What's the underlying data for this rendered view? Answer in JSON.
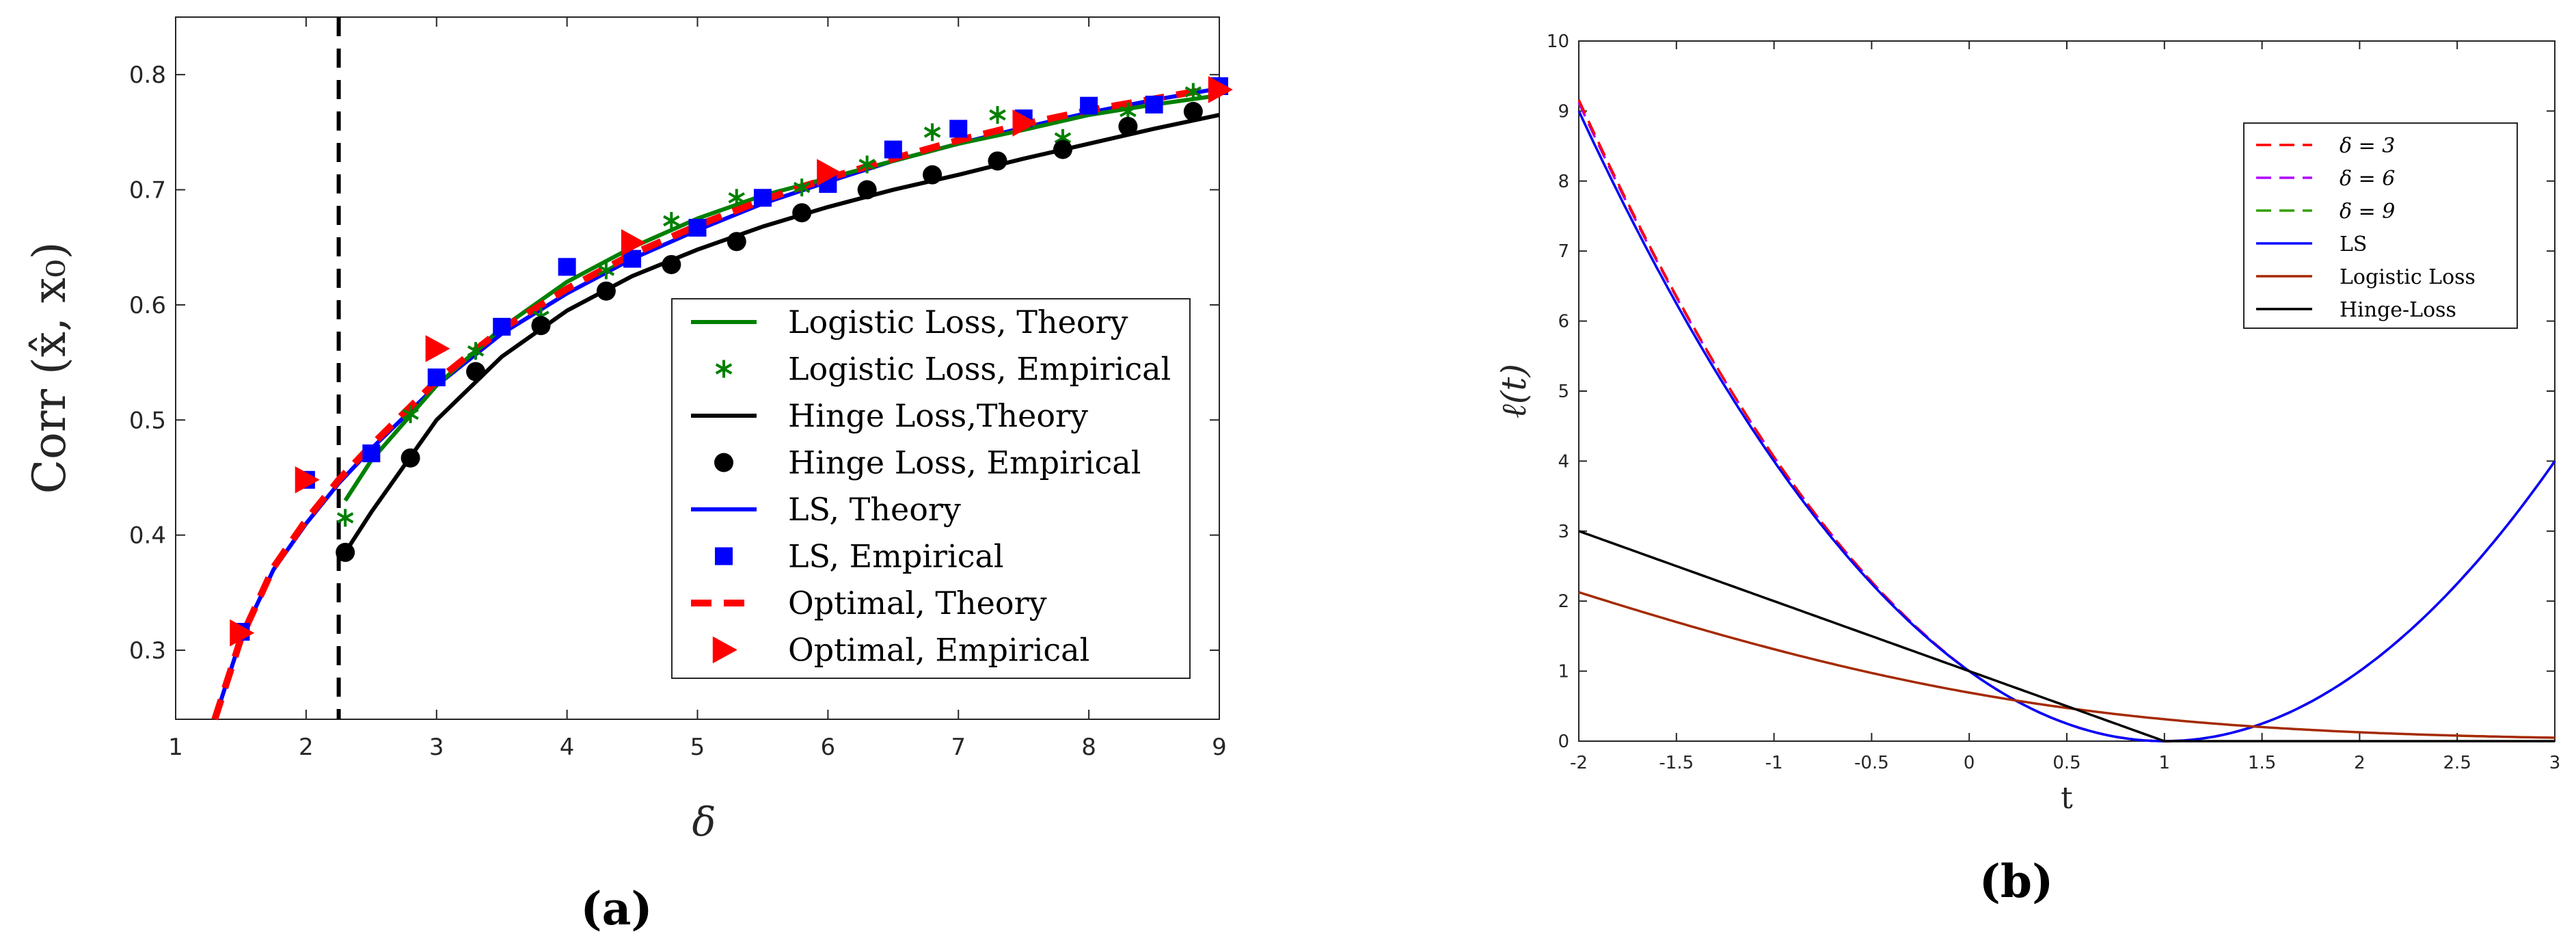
{
  "chart_data": [
    {
      "id": "a",
      "type": "line",
      "caption": "(a)",
      "xlabel": "δ",
      "ylabel": "Corr (x̂, x₀)",
      "xlim": [
        1,
        9
      ],
      "ylim": [
        0.24,
        0.85
      ],
      "xticks": [
        "1",
        "2",
        "3",
        "4",
        "5",
        "6",
        "7",
        "8",
        "9"
      ],
      "yticks": [
        "0.3",
        "0.4",
        "0.5",
        "0.6",
        "0.7",
        "0.8"
      ],
      "vline": 2.25,
      "legend_position": "bottom-right",
      "series": [
        {
          "name": "Logistic Loss, Theory",
          "kind": "line",
          "color": "#008000",
          "x": [
            2.3,
            2.5,
            3,
            3.5,
            4,
            4.5,
            5,
            5.5,
            6,
            6.5,
            7,
            7.5,
            8,
            8.5,
            9
          ],
          "y": [
            0.43,
            0.465,
            0.53,
            0.58,
            0.62,
            0.65,
            0.675,
            0.695,
            0.71,
            0.725,
            0.74,
            0.752,
            0.765,
            0.774,
            0.782
          ]
        },
        {
          "name": "Logistic Loss, Empirical",
          "kind": "asterisk",
          "color": "#008000",
          "x": [
            2.3,
            2.8,
            3.3,
            3.8,
            4.3,
            4.8,
            5.3,
            5.8,
            6.3,
            6.8,
            7.3,
            7.8,
            8.3,
            8.8
          ],
          "y": [
            0.415,
            0.505,
            0.56,
            0.59,
            0.63,
            0.673,
            0.693,
            0.702,
            0.722,
            0.75,
            0.765,
            0.745,
            0.768,
            0.785
          ]
        },
        {
          "name": "Hinge Loss,Theory",
          "kind": "line",
          "color": "#000000",
          "x": [
            2.3,
            2.5,
            3,
            3.5,
            4,
            4.5,
            5,
            5.5,
            6,
            6.5,
            7,
            7.5,
            8,
            8.5,
            9
          ],
          "y": [
            0.385,
            0.42,
            0.5,
            0.555,
            0.595,
            0.625,
            0.648,
            0.668,
            0.685,
            0.7,
            0.713,
            0.727,
            0.74,
            0.753,
            0.765
          ]
        },
        {
          "name": "Hinge Loss, Empirical",
          "kind": "circle",
          "color": "#000000",
          "x": [
            2.3,
            2.8,
            3.3,
            3.8,
            4.3,
            4.8,
            5.3,
            5.8,
            6.3,
            6.8,
            7.3,
            7.8,
            8.3,
            8.8
          ],
          "y": [
            0.385,
            0.467,
            0.542,
            0.582,
            0.612,
            0.635,
            0.655,
            0.68,
            0.7,
            0.713,
            0.725,
            0.735,
            0.755,
            0.768
          ]
        },
        {
          "name": "LS, Theory",
          "kind": "line",
          "color": "#0000ff",
          "x": [
            1.3,
            1.5,
            1.75,
            2,
            2.25,
            2.5,
            3,
            3.5,
            4,
            4.5,
            5,
            5.5,
            6,
            6.5,
            7,
            7.5,
            8,
            8.5,
            9
          ],
          "y": [
            0.24,
            0.31,
            0.37,
            0.41,
            0.445,
            0.475,
            0.53,
            0.575,
            0.61,
            0.64,
            0.665,
            0.688,
            0.707,
            0.725,
            0.74,
            0.754,
            0.767,
            0.778,
            0.788
          ]
        },
        {
          "name": "LS, Empirical",
          "kind": "square",
          "color": "#0000ff",
          "x": [
            1.5,
            2,
            2.5,
            3,
            3.5,
            4,
            4.5,
            5,
            5.5,
            6,
            6.5,
            7,
            7.5,
            8,
            8.5,
            9
          ],
          "y": [
            0.316,
            0.448,
            0.471,
            0.537,
            0.581,
            0.633,
            0.64,
            0.667,
            0.693,
            0.705,
            0.735,
            0.753,
            0.762,
            0.773,
            0.774,
            0.79
          ]
        },
        {
          "name": "Optimal, Theory",
          "kind": "dashed",
          "color": "#ff0000",
          "x": [
            1.3,
            1.5,
            1.75,
            2,
            2.25,
            2.5,
            3,
            3.5,
            4,
            4.5,
            5,
            5.5,
            6,
            6.5,
            7,
            7.5,
            8,
            8.5,
            9
          ],
          "y": [
            0.24,
            0.31,
            0.372,
            0.413,
            0.448,
            0.478,
            0.534,
            0.579,
            0.614,
            0.644,
            0.669,
            0.691,
            0.71,
            0.727,
            0.743,
            0.757,
            0.769,
            0.779,
            0.789
          ]
        },
        {
          "name": "Optimal, Empirical",
          "kind": "triangle",
          "color": "#ff0000",
          "x": [
            1.5,
            2,
            3,
            4.5,
            6,
            7.5,
            9
          ],
          "y": [
            0.315,
            0.448,
            0.562,
            0.654,
            0.715,
            0.758,
            0.787
          ]
        }
      ]
    },
    {
      "id": "b",
      "type": "line",
      "caption": "(b)",
      "xlabel": "t",
      "ylabel": "ℓ(t)",
      "xlim": [
        -2,
        3
      ],
      "ylim": [
        0,
        10
      ],
      "xticks": [
        "-2",
        "-1.5",
        "-1",
        "-0.5",
        "0",
        "0.5",
        "1",
        "1.5",
        "2",
        "2.5",
        "3"
      ],
      "yticks": [
        "0",
        "1",
        "2",
        "3",
        "4",
        "5",
        "6",
        "7",
        "8",
        "9",
        "10"
      ],
      "legend_position": "top-right",
      "series": [
        {
          "name": "δ = 3",
          "kind": "dashed",
          "color": "#ff0000",
          "formula": "(1-t)^2 + 0.02*(2-t)*max(0,-t)"
        },
        {
          "name": "δ = 6",
          "kind": "dashed",
          "color": "#b000ff",
          "formula": "(1-t)^2 + 0.06*max(0,-t)"
        },
        {
          "name": "δ = 9",
          "kind": "dashed",
          "color": "#30a000",
          "formula": "(1-t)^2"
        },
        {
          "name": "LS",
          "kind": "line",
          "color": "#0000ff",
          "formula": "(1-t)^2"
        },
        {
          "name": "Logistic Loss",
          "kind": "line",
          "color": "#a52a00",
          "formula": "log(1+exp(-t))"
        },
        {
          "name": "Hinge-Loss",
          "kind": "line",
          "color": "#000000",
          "formula": "max(0,1-t)"
        }
      ]
    }
  ]
}
